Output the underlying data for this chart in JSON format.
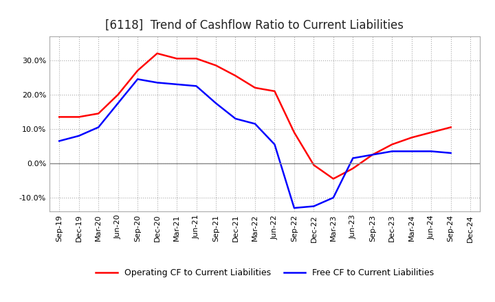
{
  "title": "[6118]  Trend of Cashflow Ratio to Current Liabilities",
  "x_labels": [
    "Sep-19",
    "Dec-19",
    "Mar-20",
    "Jun-20",
    "Sep-20",
    "Dec-20",
    "Mar-21",
    "Jun-21",
    "Sep-21",
    "Dec-21",
    "Mar-22",
    "Jun-22",
    "Sep-22",
    "Dec-22",
    "Mar-23",
    "Jun-23",
    "Sep-23",
    "Dec-23",
    "Mar-24",
    "Jun-24",
    "Sep-24",
    "Dec-24"
  ],
  "operating_cf": [
    0.135,
    0.135,
    0.145,
    0.2,
    0.27,
    0.32,
    0.305,
    0.305,
    0.285,
    0.255,
    0.22,
    0.21,
    0.09,
    -0.005,
    -0.045,
    -0.015,
    0.025,
    0.055,
    0.075,
    0.09,
    0.105,
    null
  ],
  "free_cf": [
    0.065,
    0.08,
    0.105,
    0.175,
    0.245,
    0.235,
    0.23,
    0.225,
    0.175,
    0.13,
    0.115,
    0.055,
    -0.13,
    -0.125,
    -0.1,
    0.015,
    0.025,
    0.035,
    0.035,
    0.035,
    0.03,
    null
  ],
  "ylim": [
    -0.14,
    0.37
  ],
  "yticks": [
    -0.1,
    0.0,
    0.1,
    0.2,
    0.3
  ],
  "operating_color": "#ff0000",
  "free_color": "#0000ff",
  "background_color": "#ffffff",
  "grid_color": "#aaaaaa",
  "title_fontsize": 12,
  "tick_fontsize": 8,
  "legend_labels": [
    "Operating CF to Current Liabilities",
    "Free CF to Current Liabilities"
  ]
}
